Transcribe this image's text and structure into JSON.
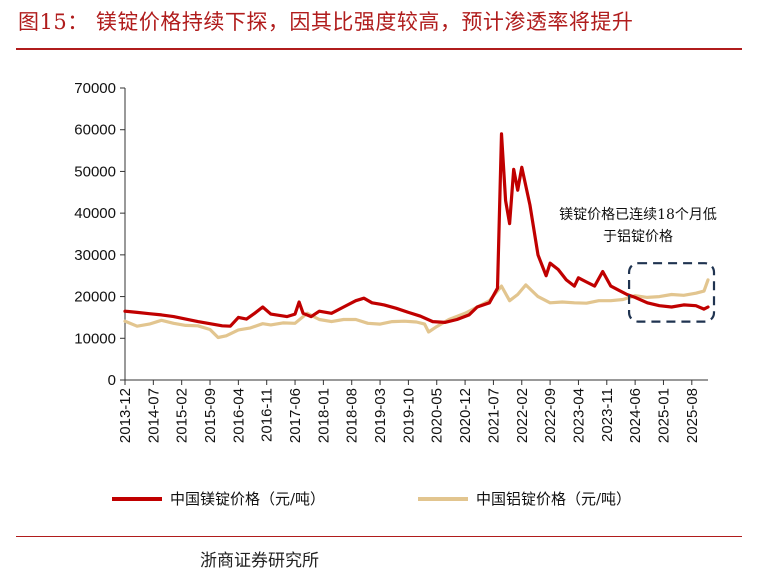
{
  "figure": {
    "title": "图15： 镁锭价格持续下探，因其比强度较高，预计渗透率将提升",
    "source": "浙商证券研究所"
  },
  "chart_data": {
    "type": "line",
    "title": "镁锭价格持续下探，因其比强度较高，预计渗透率将提升",
    "xlabel": "",
    "ylabel": "",
    "ylim": [
      0,
      70000
    ],
    "yticks": [
      "0",
      "10000",
      "20000",
      "30000",
      "40000",
      "50000",
      "60000",
      "70000"
    ],
    "x_range": [
      "2013-12",
      "2025-12"
    ],
    "xticks": [
      "2013-12",
      "2014-07",
      "2015-02",
      "2015-09",
      "2016-04",
      "2016-11",
      "2017-06",
      "2018-01",
      "2018-08",
      "2019-03",
      "2019-10",
      "2020-05",
      "2020-12",
      "2021-07",
      "2022-02",
      "2022-09",
      "2023-04",
      "2023-11",
      "2024-06",
      "2025-01",
      "2025-08"
    ],
    "legend_position": "bottom",
    "series": [
      {
        "name": "中国镁锭价格（元/吨）",
        "color": "#c00000",
        "points": [
          [
            "2013-12",
            16500
          ],
          [
            "2014-03",
            16200
          ],
          [
            "2014-06",
            15900
          ],
          [
            "2014-09",
            15600
          ],
          [
            "2014-12",
            15200
          ],
          [
            "2015-03",
            14600
          ],
          [
            "2015-06",
            14000
          ],
          [
            "2015-09",
            13500
          ],
          [
            "2015-12",
            13000
          ],
          [
            "2016-02",
            12900
          ],
          [
            "2016-04",
            15000
          ],
          [
            "2016-06",
            14600
          ],
          [
            "2016-08",
            16000
          ],
          [
            "2016-10",
            17500
          ],
          [
            "2016-12",
            15800
          ],
          [
            "2017-02",
            15500
          ],
          [
            "2017-04",
            15200
          ],
          [
            "2017-06",
            15800
          ],
          [
            "2017-07",
            18700
          ],
          [
            "2017-08",
            16000
          ],
          [
            "2017-10",
            15200
          ],
          [
            "2017-12",
            16500
          ],
          [
            "2018-03",
            16000
          ],
          [
            "2018-06",
            17500
          ],
          [
            "2018-09",
            19000
          ],
          [
            "2018-11",
            19600
          ],
          [
            "2019-01",
            18500
          ],
          [
            "2019-04",
            18000
          ],
          [
            "2019-07",
            17200
          ],
          [
            "2019-10",
            16200
          ],
          [
            "2020-01",
            15300
          ],
          [
            "2020-04",
            14000
          ],
          [
            "2020-07",
            13800
          ],
          [
            "2020-10",
            14500
          ],
          [
            "2021-01",
            15600
          ],
          [
            "2021-03",
            17500
          ],
          [
            "2021-06",
            18500
          ],
          [
            "2021-08",
            22000
          ],
          [
            "2021-09",
            59000
          ],
          [
            "2021-10",
            43000
          ],
          [
            "2021-11",
            37500
          ],
          [
            "2021-12",
            50500
          ],
          [
            "2022-01",
            45500
          ],
          [
            "2022-02",
            51000
          ],
          [
            "2022-04",
            42000
          ],
          [
            "2022-06",
            30000
          ],
          [
            "2022-08",
            25000
          ],
          [
            "2022-09",
            28000
          ],
          [
            "2022-11",
            26500
          ],
          [
            "2023-01",
            24000
          ],
          [
            "2023-03",
            22500
          ],
          [
            "2023-04",
            24500
          ],
          [
            "2023-06",
            23500
          ],
          [
            "2023-08",
            22500
          ],
          [
            "2023-10",
            26000
          ],
          [
            "2023-12",
            22500
          ],
          [
            "2024-02",
            21500
          ],
          [
            "2024-04",
            20500
          ],
          [
            "2024-06",
            19800
          ],
          [
            "2024-09",
            18500
          ],
          [
            "2024-12",
            17800
          ],
          [
            "2025-03",
            17500
          ],
          [
            "2025-06",
            18000
          ],
          [
            "2025-09",
            17800
          ],
          [
            "2025-11",
            17000
          ],
          [
            "2025-12",
            17500
          ]
        ]
      },
      {
        "name": "中国铝锭价格（元/吨）",
        "color": "#e2c58f",
        "points": [
          [
            "2013-12",
            14100
          ],
          [
            "2014-03",
            12900
          ],
          [
            "2014-06",
            13400
          ],
          [
            "2014-09",
            14300
          ],
          [
            "2014-12",
            13600
          ],
          [
            "2015-03",
            13100
          ],
          [
            "2015-06",
            13000
          ],
          [
            "2015-09",
            12100
          ],
          [
            "2015-11",
            10200
          ],
          [
            "2016-01",
            10600
          ],
          [
            "2016-04",
            12000
          ],
          [
            "2016-07",
            12500
          ],
          [
            "2016-10",
            13500
          ],
          [
            "2016-12",
            13200
          ],
          [
            "2017-03",
            13700
          ],
          [
            "2017-06",
            13600
          ],
          [
            "2017-09",
            16000
          ],
          [
            "2017-12",
            14500
          ],
          [
            "2018-03",
            14000
          ],
          [
            "2018-06",
            14500
          ],
          [
            "2018-09",
            14500
          ],
          [
            "2018-12",
            13600
          ],
          [
            "2019-03",
            13400
          ],
          [
            "2019-06",
            14000
          ],
          [
            "2019-09",
            14100
          ],
          [
            "2019-12",
            13900
          ],
          [
            "2020-02",
            13400
          ],
          [
            "2020-03",
            11500
          ],
          [
            "2020-05",
            12800
          ],
          [
            "2020-08",
            14500
          ],
          [
            "2020-12",
            16000
          ],
          [
            "2021-03",
            17500
          ],
          [
            "2021-06",
            19000
          ],
          [
            "2021-09",
            22500
          ],
          [
            "2021-11",
            19000
          ],
          [
            "2022-01",
            20500
          ],
          [
            "2022-03",
            22800
          ],
          [
            "2022-06",
            20000
          ],
          [
            "2022-09",
            18500
          ],
          [
            "2022-12",
            18700
          ],
          [
            "2023-03",
            18500
          ],
          [
            "2023-06",
            18400
          ],
          [
            "2023-09",
            19000
          ],
          [
            "2023-12",
            19000
          ],
          [
            "2024-03",
            19300
          ],
          [
            "2024-06",
            20200
          ],
          [
            "2024-09",
            19800
          ],
          [
            "2024-12",
            20000
          ],
          [
            "2025-03",
            20500
          ],
          [
            "2025-06",
            20300
          ],
          [
            "2025-09",
            20800
          ],
          [
            "2025-11",
            21300
          ],
          [
            "2025-12",
            24000
          ]
        ]
      }
    ],
    "annotation": {
      "lines": [
        "镁锭价格已连续18个月低",
        "于铝锭价格"
      ],
      "highlight_range": [
        "2024-05",
        "2025-12"
      ],
      "highlight_y_range": [
        14000,
        28000
      ]
    }
  }
}
